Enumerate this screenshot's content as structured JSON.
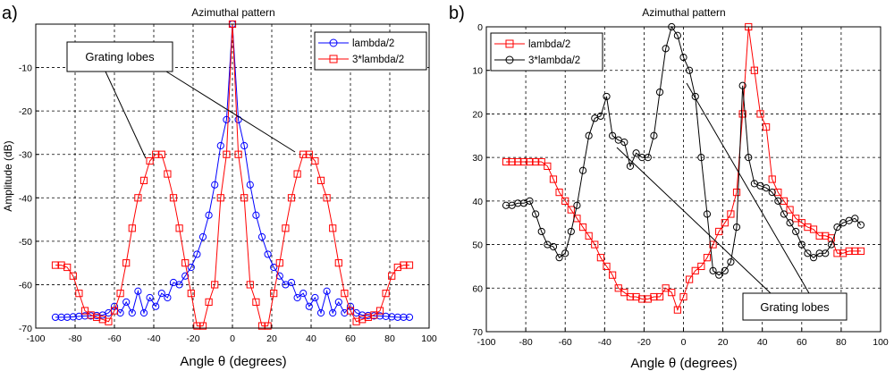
{
  "chart_data": [
    {
      "type": "line",
      "panel_label": "a)",
      "title": "Azimuthal pattern",
      "xlabel": "Angle θ (degrees)",
      "ylabel": "Amplitude (dB)",
      "xlim": [
        -100,
        100
      ],
      "ylim": [
        -70,
        0
      ],
      "xticks": [
        -100,
        -80,
        -60,
        -40,
        -20,
        0,
        20,
        40,
        60,
        80,
        100
      ],
      "yticks": [
        -70,
        -60,
        -50,
        -40,
        -30,
        -20,
        -10
      ],
      "grid": true,
      "legend_position": "top-right",
      "annotation": {
        "text": "Grating lobes",
        "targets": [
          [
            -38,
            -30
          ],
          [
            36,
            -30
          ]
        ]
      },
      "series": [
        {
          "name": "lambda/2",
          "color": "#0000ff",
          "marker": "circle",
          "x": [
            -90,
            -87,
            -84,
            -81,
            -78,
            -75,
            -72,
            -69,
            -66,
            -63,
            -60,
            -57,
            -54,
            -51,
            -48,
            -45,
            -42,
            -39,
            -36,
            -33,
            -30,
            -27,
            -24,
            -21,
            -18,
            -15,
            -12,
            -9,
            -6,
            -3,
            0,
            3,
            6,
            9,
            12,
            15,
            18,
            21,
            24,
            27,
            30,
            33,
            36,
            39,
            42,
            45,
            48,
            51,
            54,
            57,
            60,
            63,
            66,
            69,
            72,
            75,
            78,
            81,
            84,
            87,
            90
          ],
          "y": [
            -67.5,
            -67.5,
            -67.5,
            -67.4,
            -67.3,
            -67.2,
            -67.2,
            -67.1,
            -67,
            -66.5,
            -65,
            -66.5,
            -64,
            -66.5,
            -61.5,
            -66.5,
            -63,
            -65,
            -62,
            -63,
            -59.5,
            -60,
            -58,
            -56,
            -53,
            -49,
            -44,
            -37,
            -28,
            -22,
            0,
            -22,
            -28,
            -37,
            -44,
            -49,
            -53,
            -56,
            -58,
            -60,
            -59.5,
            -63,
            -62,
            -65,
            -63,
            -66.5,
            -61.5,
            -66.5,
            -64,
            -66.5,
            -65,
            -66.5,
            -67,
            -67.1,
            -67.2,
            -67.2,
            -67.3,
            -67.4,
            -67.5,
            -67.5,
            -67.5
          ]
        },
        {
          "name": "3*lambda/2",
          "color": "#ff0000",
          "marker": "square",
          "x": [
            -90,
            -87,
            -84,
            -81,
            -78,
            -75,
            -72,
            -69,
            -66,
            -63,
            -60,
            -57,
            -54,
            -51,
            -48,
            -45,
            -42,
            -39,
            -36,
            -33,
            -30,
            -27,
            -24,
            -21,
            -18,
            -15,
            -12,
            -9,
            -6,
            -3,
            0,
            3,
            6,
            9,
            12,
            15,
            18,
            21,
            24,
            27,
            30,
            33,
            36,
            39,
            42,
            45,
            48,
            51,
            54,
            57,
            60,
            63,
            66,
            69,
            72,
            75,
            78,
            81,
            84,
            87,
            90
          ],
          "y": [
            -55.5,
            -55.5,
            -56,
            -58,
            -62,
            -66,
            -67,
            -67.5,
            -68,
            -68.5,
            -66,
            -62,
            -55,
            -47,
            -40,
            -36,
            -31.5,
            -30,
            -30,
            -34.5,
            -40,
            -47,
            -55,
            -62,
            -69.5,
            -69.5,
            -64,
            -60,
            -40,
            -30,
            0,
            -30,
            -40,
            -60,
            -64,
            -69.5,
            -69.5,
            -62,
            -55,
            -47,
            -40,
            -34.5,
            -30,
            -30,
            -31.5,
            -36,
            -40,
            -47,
            -55,
            -62,
            -66,
            -68.5,
            -68,
            -67.5,
            -67,
            -66,
            -62,
            -58,
            -56,
            -55.5,
            -55.5
          ]
        }
      ]
    },
    {
      "type": "line",
      "panel_label": "b)",
      "title": "Azimuthal pattern",
      "xlabel": "Angle θ (degrees)",
      "ylabel": "",
      "xlim": [
        -100,
        100
      ],
      "ylim": [
        0,
        70
      ],
      "y_reversed": true,
      "xticks": [
        -100,
        -80,
        -60,
        -40,
        -20,
        0,
        20,
        40,
        60,
        80,
        100
      ],
      "yticks": [
        0,
        10,
        20,
        30,
        40,
        50,
        60,
        70
      ],
      "grid": true,
      "legend_position": "top-left",
      "annotation": {
        "text": "Grating lobes",
        "targets": [
          [
            -36,
            28
          ],
          [
            4,
            13
          ]
        ]
      },
      "series": [
        {
          "name": "lambda/2",
          "color": "#ff0000",
          "marker": "square",
          "x": [
            -90,
            -87,
            -84,
            -81,
            -78,
            -75,
            -72,
            -69,
            -66,
            -63,
            -60,
            -57,
            -54,
            -51,
            -48,
            -45,
            -42,
            -39,
            -36,
            -33,
            -30,
            -27,
            -24,
            -21,
            -18,
            -15,
            -12,
            -9,
            -6,
            -3,
            0,
            3,
            6,
            9,
            12,
            15,
            18,
            21,
            24,
            27,
            30,
            33,
            36,
            39,
            42,
            45,
            48,
            51,
            54,
            57,
            60,
            63,
            66,
            69,
            72,
            75,
            78,
            81,
            84,
            87,
            90
          ],
          "y": [
            31,
            31,
            31,
            31,
            31,
            31,
            31,
            32,
            35,
            38,
            40,
            42,
            44,
            46,
            48,
            50,
            53,
            55,
            57,
            60,
            61,
            62,
            62,
            62.5,
            62.5,
            62,
            62,
            60,
            61,
            65,
            62,
            58,
            56,
            55,
            53,
            50,
            47,
            45,
            43,
            38,
            20,
            0,
            10,
            20,
            23,
            35,
            38,
            40,
            42,
            44,
            45,
            46,
            46.5,
            48,
            48,
            48.5,
            52,
            52,
            51.5,
            51.5,
            51.5
          ]
        },
        {
          "name": "3*lambda/2",
          "color": "#000000",
          "marker": "circle",
          "x": [
            -90,
            -87,
            -84,
            -81,
            -78,
            -75,
            -72,
            -69,
            -66,
            -63,
            -60,
            -57,
            -54,
            -51,
            -48,
            -45,
            -42,
            -39,
            -36,
            -33,
            -30,
            -27,
            -24,
            -21,
            -18,
            -15,
            -12,
            -9,
            -6,
            -3,
            0,
            3,
            6,
            9,
            12,
            15,
            18,
            21,
            24,
            27,
            30,
            33,
            36,
            39,
            42,
            45,
            48,
            51,
            54,
            57,
            60,
            63,
            66,
            69,
            72,
            75,
            78,
            81,
            84,
            87,
            90
          ],
          "y": [
            41,
            41,
            40.5,
            40.5,
            40,
            43,
            47,
            50,
            50.5,
            53,
            52,
            47,
            41,
            33,
            25,
            21,
            20.5,
            16,
            25,
            26,
            26.5,
            32,
            29,
            30,
            30,
            25,
            15,
            5,
            0,
            2,
            7,
            10,
            16,
            30,
            43,
            56,
            57,
            56,
            54,
            46,
            13.5,
            30,
            36,
            36.5,
            37,
            38,
            40,
            43,
            45,
            47,
            50,
            52,
            53,
            52,
            52,
            50,
            46,
            45,
            44.5,
            44,
            45.5
          ]
        }
      ]
    }
  ]
}
